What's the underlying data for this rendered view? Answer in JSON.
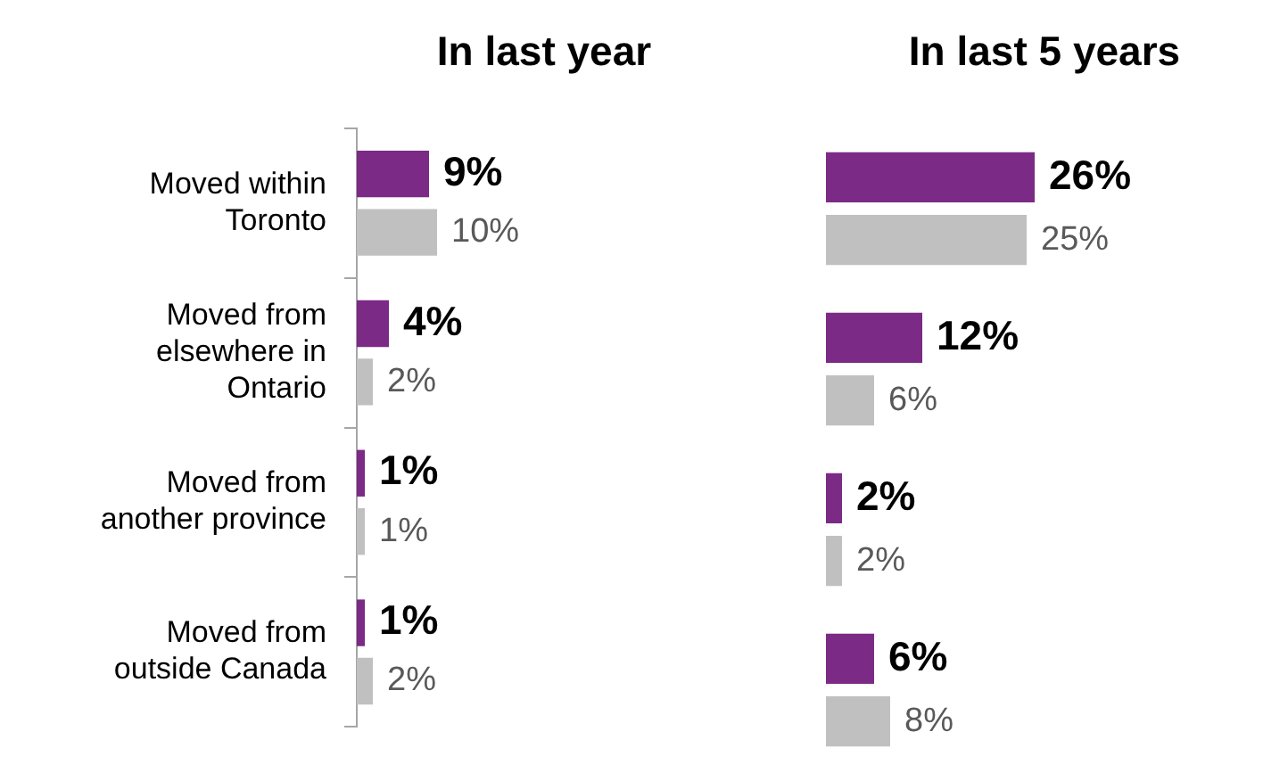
{
  "chart_data": [
    {
      "type": "bar",
      "orientation": "horizontal",
      "title": "In last year",
      "categories": [
        "Moved within Toronto",
        "Moved from elsewhere in Ontario",
        "Moved from another province",
        "Moved from outside Canada"
      ],
      "series": [
        {
          "color": "#7b2a86",
          "values": [
            9,
            4,
            1,
            1
          ],
          "value_labels": [
            "9%",
            "4%",
            "1%",
            "1%"
          ]
        },
        {
          "color": "#c0c0c0",
          "values": [
            10,
            2,
            1,
            2
          ],
          "value_labels": [
            "10%",
            "2%",
            "1%",
            "2%"
          ]
        }
      ],
      "tick_labels": "y",
      "legend": false
    },
    {
      "type": "bar",
      "orientation": "horizontal",
      "title": "In last 5 years",
      "categories": [
        null,
        null,
        null,
        null
      ],
      "series": [
        {
          "color": "#7b2a86",
          "values": [
            26,
            12,
            2,
            6
          ],
          "value_labels": [
            "26%",
            "12%",
            "2%",
            "6%"
          ]
        },
        {
          "color": "#c0c0c0",
          "values": [
            25,
            6,
            2,
            8
          ],
          "value_labels": [
            "25%",
            "6%",
            "2%",
            "8%"
          ]
        }
      ],
      "tick_labels": false,
      "legend": false
    }
  ]
}
